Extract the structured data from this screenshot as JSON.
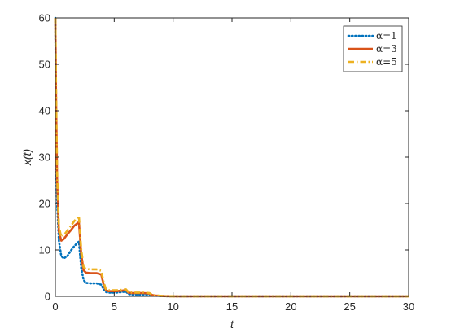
{
  "chart_data": {
    "type": "line",
    "xlabel": "t",
    "ylabel": "x(t)",
    "xlim": [
      0,
      30
    ],
    "ylim": [
      0,
      60
    ],
    "xticks": [
      0,
      5,
      10,
      15,
      20,
      25,
      30
    ],
    "yticks": [
      0,
      10,
      20,
      30,
      40,
      50,
      60
    ],
    "grid": false,
    "legend_position": "top-right",
    "series": [
      {
        "name": "α=1",
        "color": "#0072BD",
        "style": "dotted",
        "x": [
          0,
          0.05,
          0.15,
          0.3,
          0.5,
          0.7,
          1.0,
          1.3,
          1.6,
          1.9,
          2.0,
          2.2,
          2.4,
          2.6,
          3.0,
          3.5,
          3.9,
          4.1,
          4.3,
          4.5,
          4.8,
          5.2,
          5.6,
          5.9,
          6.0,
          6.2,
          6.5,
          7.0,
          7.5,
          8.0,
          8.2,
          8.4,
          8.8,
          9.2,
          9.6,
          10.0,
          10.5,
          11,
          12,
          14,
          16,
          18,
          20,
          22,
          25,
          28,
          30
        ],
        "y": [
          60,
          40,
          20,
          12,
          8.7,
          8.2,
          8.6,
          9.8,
          10.8,
          11.6,
          11.8,
          6.0,
          3.5,
          2.9,
          2.8,
          2.8,
          2.5,
          1.5,
          0.9,
          0.8,
          0.8,
          0.8,
          0.9,
          1.0,
          1.0,
          0.5,
          0.4,
          0.4,
          0.4,
          0.4,
          0.2,
          0.15,
          0.1,
          0.05,
          0.03,
          0.02,
          0,
          0,
          0,
          0,
          0,
          0,
          0,
          0,
          0,
          0,
          0
        ]
      },
      {
        "name": "α=3",
        "color": "#D95319",
        "style": "solid",
        "x": [
          0,
          0.05,
          0.15,
          0.3,
          0.5,
          0.7,
          1.0,
          1.3,
          1.6,
          1.9,
          2.0,
          2.2,
          2.4,
          2.6,
          3.0,
          3.5,
          3.9,
          4.1,
          4.3,
          4.5,
          4.8,
          5.2,
          5.6,
          5.9,
          6.0,
          6.2,
          6.5,
          7.0,
          7.5,
          8.0,
          8.2,
          8.4,
          8.8,
          9.2,
          9.6,
          10.0,
          10.5,
          11,
          12,
          14,
          16,
          18,
          20,
          22,
          25,
          28,
          30
        ],
        "y": [
          60,
          45,
          25,
          14,
          12,
          12.3,
          13.3,
          14.2,
          15.2,
          15.8,
          16.0,
          9.0,
          5.6,
          5.1,
          5.0,
          5.0,
          4.7,
          2.5,
          1.3,
          1.1,
          1.1,
          1.1,
          1.2,
          1.3,
          1.3,
          0.8,
          0.7,
          0.7,
          0.7,
          0.6,
          0.3,
          0.2,
          0.12,
          0.06,
          0.03,
          0.02,
          0,
          0,
          0,
          0,
          0,
          0,
          0,
          0,
          0,
          0,
          0
        ]
      },
      {
        "name": "α=5",
        "color": "#EDB120",
        "style": "dashdot",
        "x": [
          0,
          0.05,
          0.15,
          0.3,
          0.5,
          0.7,
          1.0,
          1.3,
          1.6,
          1.9,
          2.0,
          2.2,
          2.4,
          2.6,
          3.0,
          3.5,
          3.9,
          4.1,
          4.3,
          4.5,
          4.8,
          5.2,
          5.6,
          5.9,
          6.0,
          6.2,
          6.5,
          7.0,
          7.5,
          8.0,
          8.2,
          8.4,
          8.8,
          9.2,
          9.6,
          10.0,
          10.5,
          11,
          12,
          14,
          16,
          18,
          20,
          22,
          25,
          28,
          30
        ],
        "y": [
          60,
          47,
          27,
          15,
          12.8,
          13.1,
          14.1,
          15.1,
          16.2,
          17.0,
          17.3,
          10.0,
          6.3,
          5.9,
          5.8,
          5.8,
          5.5,
          3.0,
          1.5,
          1.3,
          1.3,
          1.3,
          1.4,
          1.5,
          1.5,
          0.9,
          0.8,
          0.8,
          0.8,
          0.7,
          0.35,
          0.25,
          0.15,
          0.07,
          0.04,
          0.02,
          0,
          0,
          0,
          0,
          0,
          0,
          0,
          0,
          0,
          0,
          0
        ]
      }
    ]
  }
}
